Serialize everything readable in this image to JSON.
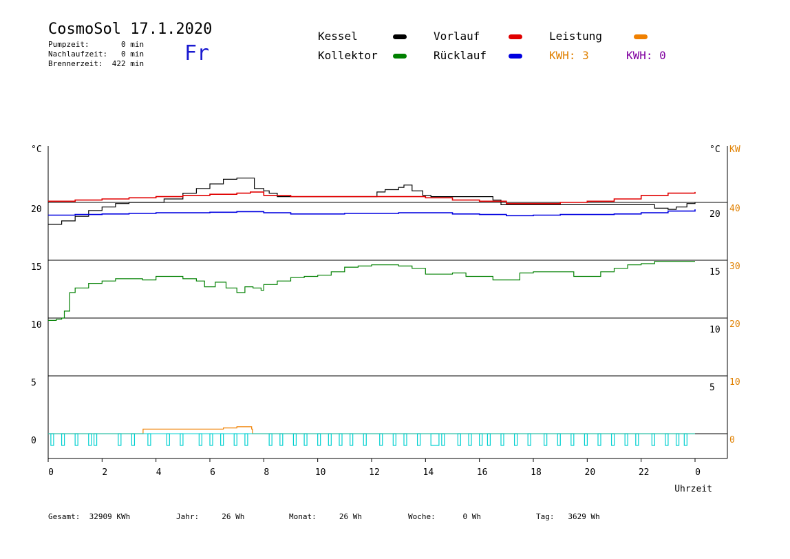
{
  "header": {
    "title": "CosmoSol 17.1.2020",
    "day": "Fr",
    "pumpzeit": "Pumpzeit:       0 min",
    "nachlaufzeit": "Nachlaufzeit:   0 min",
    "brennerzeit": "Brennerzeit:  422 min"
  },
  "legend": {
    "kessel": "Kessel",
    "kollektor": "Kollektor",
    "vorlauf": "Vorlauf",
    "ruecklauf": "Rücklauf",
    "leistung": "Leistung",
    "kwh_orange": "KWH: 3",
    "kwh_purple": "KWH: 0"
  },
  "colors": {
    "kessel": "#000000",
    "kollektor": "#008000",
    "vorlauf": "#e00000",
    "ruecklauf": "#0000e0",
    "leistung": "#f08000",
    "pump": "#00d0d0",
    "purple": "#8000a0"
  },
  "footer": {
    "gesamt": "Gesamt:  32909 KWh",
    "jahr": "Jahr:     26 Wh",
    "monat": "Monat:     26 Wh",
    "woche": "Woche:      0 Wh",
    "tag": "Tag:   3629 Wh"
  },
  "chart_data": {
    "type": "line",
    "xlabel": "Uhrzeit",
    "xlim": [
      0,
      24
    ],
    "xticks": [
      "0",
      "2",
      "4",
      "6",
      "8",
      "10",
      "12",
      "14",
      "16",
      "18",
      "20",
      "22",
      "0"
    ],
    "left_axis": {
      "unit": "°C",
      "ylim": [
        -2,
        25
      ],
      "ticks": [
        0,
        5,
        10,
        15,
        20
      ]
    },
    "right_axis_temp": {
      "unit": "°C",
      "ticks": [
        5,
        10,
        15,
        20
      ]
    },
    "right_axis_kw": {
      "unit": "KW",
      "ticks": [
        0,
        10,
        20,
        30,
        40
      ]
    },
    "grid_y": [
      0,
      5,
      10,
      15,
      20
    ],
    "series": [
      {
        "name": "Kessel",
        "color": "#000000",
        "x": [
          0,
          0.5,
          1,
          1.5,
          2,
          2.5,
          3,
          4,
          4.3,
          5,
          5.5,
          6,
          6.5,
          7,
          7.6,
          7.65,
          8,
          8.2,
          8.5,
          9,
          10,
          11,
          12,
          12.2,
          12.5,
          13,
          13.2,
          13.5,
          13.9,
          14.2,
          15,
          16,
          16.5,
          16.8,
          17,
          18,
          19,
          20,
          21,
          22,
          22.5,
          23,
          23.3,
          23.7,
          24
        ],
        "y": [
          18.1,
          18.4,
          18.8,
          19.3,
          19.6,
          19.9,
          20,
          20,
          20.3,
          20.8,
          21.2,
          21.6,
          22,
          22.1,
          22.1,
          21.2,
          21,
          20.8,
          20.5,
          20.5,
          20.5,
          20.5,
          20.5,
          20.9,
          21.1,
          21.3,
          21.5,
          21,
          20.6,
          20.5,
          20.5,
          20.5,
          20.2,
          19.8,
          19.8,
          19.8,
          19.8,
          19.8,
          19.8,
          19.8,
          19.5,
          19.4,
          19.6,
          19.9,
          20
        ]
      },
      {
        "name": "Vorlauf",
        "color": "#e00000",
        "x": [
          0,
          1,
          2,
          3,
          4,
          5,
          6,
          7,
          7.5,
          8,
          9,
          10,
          11,
          12,
          13,
          14,
          15,
          16,
          17,
          18,
          19,
          20,
          21,
          22,
          23,
          24
        ],
        "y": [
          20.1,
          20.2,
          20.3,
          20.4,
          20.5,
          20.6,
          20.7,
          20.8,
          20.9,
          20.6,
          20.5,
          20.5,
          20.5,
          20.5,
          20.5,
          20.4,
          20.2,
          20.1,
          19.9,
          19.9,
          20,
          20.1,
          20.3,
          20.6,
          20.8,
          20.9
        ]
      },
      {
        "name": "Rücklauf",
        "color": "#0000e0",
        "x": [
          0,
          1,
          2,
          3,
          4,
          5,
          6,
          7,
          8,
          9,
          10,
          11,
          12,
          13,
          14,
          15,
          16,
          17,
          18,
          19,
          20,
          21,
          22,
          23,
          24
        ],
        "y": [
          18.9,
          18.95,
          19,
          19.05,
          19.1,
          19.1,
          19.15,
          19.2,
          19.1,
          19.0,
          19.0,
          19.05,
          19.05,
          19.1,
          19.1,
          19.0,
          18.95,
          18.85,
          18.9,
          18.95,
          18.95,
          19.0,
          19.1,
          19.25,
          19.4
        ]
      },
      {
        "name": "Kollektor",
        "color": "#008000",
        "x": [
          0,
          0.3,
          0.5,
          0.6,
          0.8,
          1,
          1.5,
          2,
          2.5,
          3,
          3.5,
          4,
          4.5,
          5,
          5.5,
          5.8,
          6.2,
          6.6,
          7,
          7.3,
          7.6,
          7.9,
          8,
          8.5,
          9,
          9.5,
          10,
          10.5,
          11,
          11.5,
          12,
          12.5,
          13,
          13.5,
          14,
          14.5,
          15,
          15.5,
          16,
          16.5,
          17,
          17.5,
          18,
          18.5,
          19,
          19.5,
          20,
          20.5,
          21,
          21.5,
          22,
          22.5,
          23,
          23.5,
          24
        ],
        "y": [
          9.8,
          9.9,
          10.0,
          10.6,
          12.2,
          12.6,
          13.0,
          13.2,
          13.4,
          13.4,
          13.3,
          13.6,
          13.6,
          13.4,
          13.2,
          12.7,
          13.1,
          12.6,
          12.2,
          12.7,
          12.6,
          12.4,
          12.9,
          13.2,
          13.5,
          13.6,
          13.7,
          14.0,
          14.4,
          14.5,
          14.6,
          14.6,
          14.5,
          14.3,
          13.8,
          13.8,
          13.9,
          13.6,
          13.6,
          13.3,
          13.3,
          13.9,
          14.0,
          14.0,
          14.0,
          13.6,
          13.6,
          14.0,
          14.3,
          14.6,
          14.7,
          14.9,
          14.9,
          14.9,
          14.9
        ]
      },
      {
        "name": "Leistung",
        "color": "#f08000",
        "x": [
          0,
          3.5,
          3.52,
          5.5,
          6.5,
          7.0,
          7.5,
          7.55,
          7.58,
          24
        ],
        "y": [
          0,
          0,
          0.4,
          0.4,
          0.5,
          0.6,
          0.6,
          0.4,
          0,
          0
        ]
      },
      {
        "name": "Pumpe",
        "color": "#00d0d0",
        "pulses": [
          [
            0.1,
            0.2
          ],
          [
            0.5,
            0.6
          ],
          [
            1.0,
            1.1
          ],
          [
            1.5,
            1.6
          ],
          [
            1.7,
            1.8
          ],
          [
            2.6,
            2.7
          ],
          [
            3.1,
            3.2
          ],
          [
            3.7,
            3.8
          ],
          [
            4.4,
            4.5
          ],
          [
            4.9,
            5.0
          ],
          [
            5.6,
            5.7
          ],
          [
            6.0,
            6.1
          ],
          [
            6.4,
            6.5
          ],
          [
            6.9,
            7.0
          ],
          [
            7.3,
            7.4
          ],
          [
            8.2,
            8.3
          ],
          [
            8.6,
            8.7
          ],
          [
            9.1,
            9.2
          ],
          [
            9.5,
            9.6
          ],
          [
            10.0,
            10.1
          ],
          [
            10.4,
            10.5
          ],
          [
            10.8,
            10.9
          ],
          [
            11.2,
            11.3
          ],
          [
            11.7,
            11.8
          ],
          [
            12.3,
            12.4
          ],
          [
            12.8,
            12.9
          ],
          [
            13.2,
            13.3
          ],
          [
            13.7,
            13.8
          ],
          [
            14.2,
            14.5
          ],
          [
            14.6,
            14.7
          ],
          [
            15.2,
            15.3
          ],
          [
            15.6,
            15.7
          ],
          [
            16.0,
            16.1
          ],
          [
            16.3,
            16.4
          ],
          [
            16.8,
            16.9
          ],
          [
            17.3,
            17.4
          ],
          [
            17.8,
            17.9
          ],
          [
            18.4,
            18.5
          ],
          [
            18.9,
            19.0
          ],
          [
            19.4,
            19.5
          ],
          [
            19.9,
            20.0
          ],
          [
            20.4,
            20.5
          ],
          [
            20.9,
            21.0
          ],
          [
            21.4,
            21.5
          ],
          [
            21.8,
            21.9
          ],
          [
            22.4,
            22.5
          ],
          [
            22.9,
            23.0
          ],
          [
            23.3,
            23.4
          ],
          [
            23.6,
            23.7
          ]
        ]
      }
    ]
  }
}
